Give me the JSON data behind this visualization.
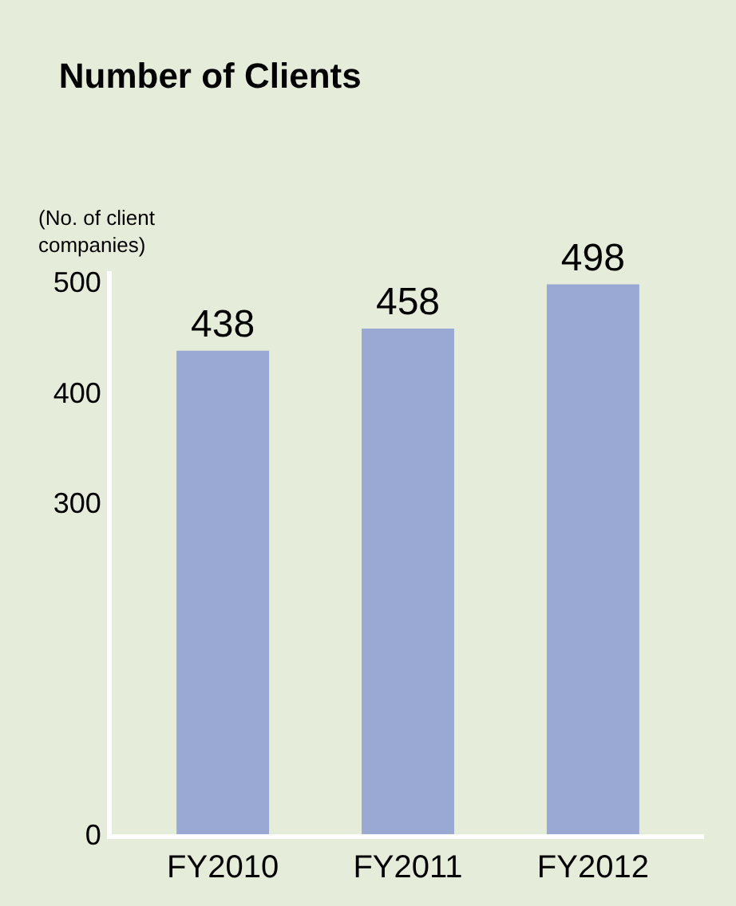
{
  "chart_data": {
    "type": "bar",
    "title": "Number of Clients",
    "ylabel": "(No. of client\ncompanies)",
    "categories": [
      "FY2010",
      "FY2011",
      "FY2012"
    ],
    "values": [
      438,
      458,
      498
    ],
    "color": "#9aa8d4",
    "ylim": [
      0,
      510
    ],
    "yticks": [
      0,
      300,
      400,
      500
    ],
    "data_labels": true,
    "grid": false,
    "legend": false
  }
}
